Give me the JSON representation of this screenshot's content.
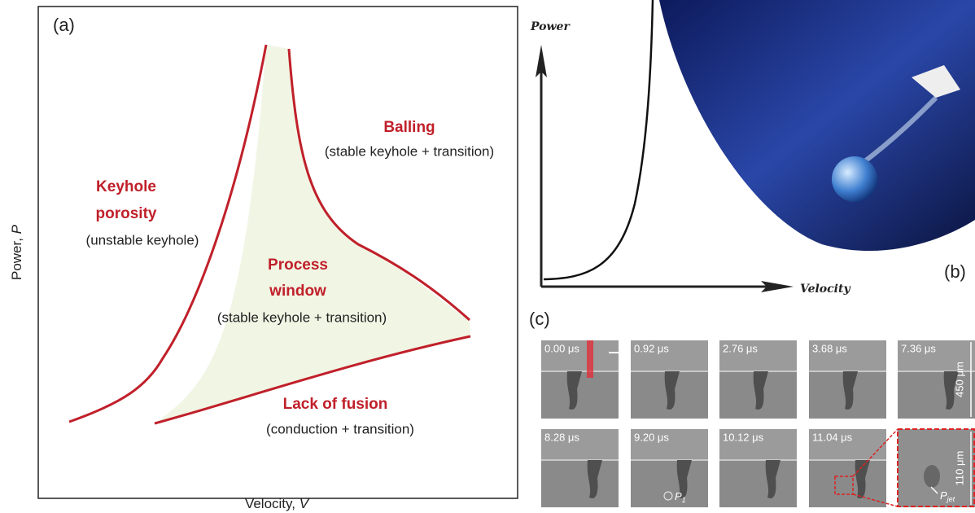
{
  "panel_a": {
    "label": "(a)",
    "y_axis_label": {
      "text": "Power, ",
      "variable": "P"
    },
    "x_axis_label": {
      "text": "Velocity, ",
      "variable": "V"
    },
    "regions": [
      {
        "title": [
          "Keyhole",
          "porosity"
        ],
        "subtitle": "(unstable keyhole)"
      },
      {
        "title": [
          "Balling"
        ],
        "subtitle": "(stable keyhole + transition)"
      },
      {
        "title": [
          "Process",
          "window"
        ],
        "subtitle": "(stable keyhole + transition)"
      },
      {
        "title": [
          "Lack of fusion"
        ],
        "subtitle": "(conduction + transition)"
      }
    ]
  },
  "panel_b": {
    "label": "(b)",
    "y_axis_label": "Power",
    "x_axis_label": "Velocity"
  },
  "panel_c": {
    "label": "(c)",
    "frames": [
      "0.00 μs",
      "0.92 μs",
      "2.76 μs",
      "3.68 μs",
      "7.36 μs",
      "8.28 μs",
      "9.20 μs",
      "10.12 μs",
      "11.04 μs"
    ],
    "scale_bars": [
      "450 μm",
      "110 μm"
    ],
    "markers": [
      {
        "text": "P",
        "subscript": "1"
      },
      {
        "text": "P",
        "subscript": "jet"
      }
    ]
  }
}
